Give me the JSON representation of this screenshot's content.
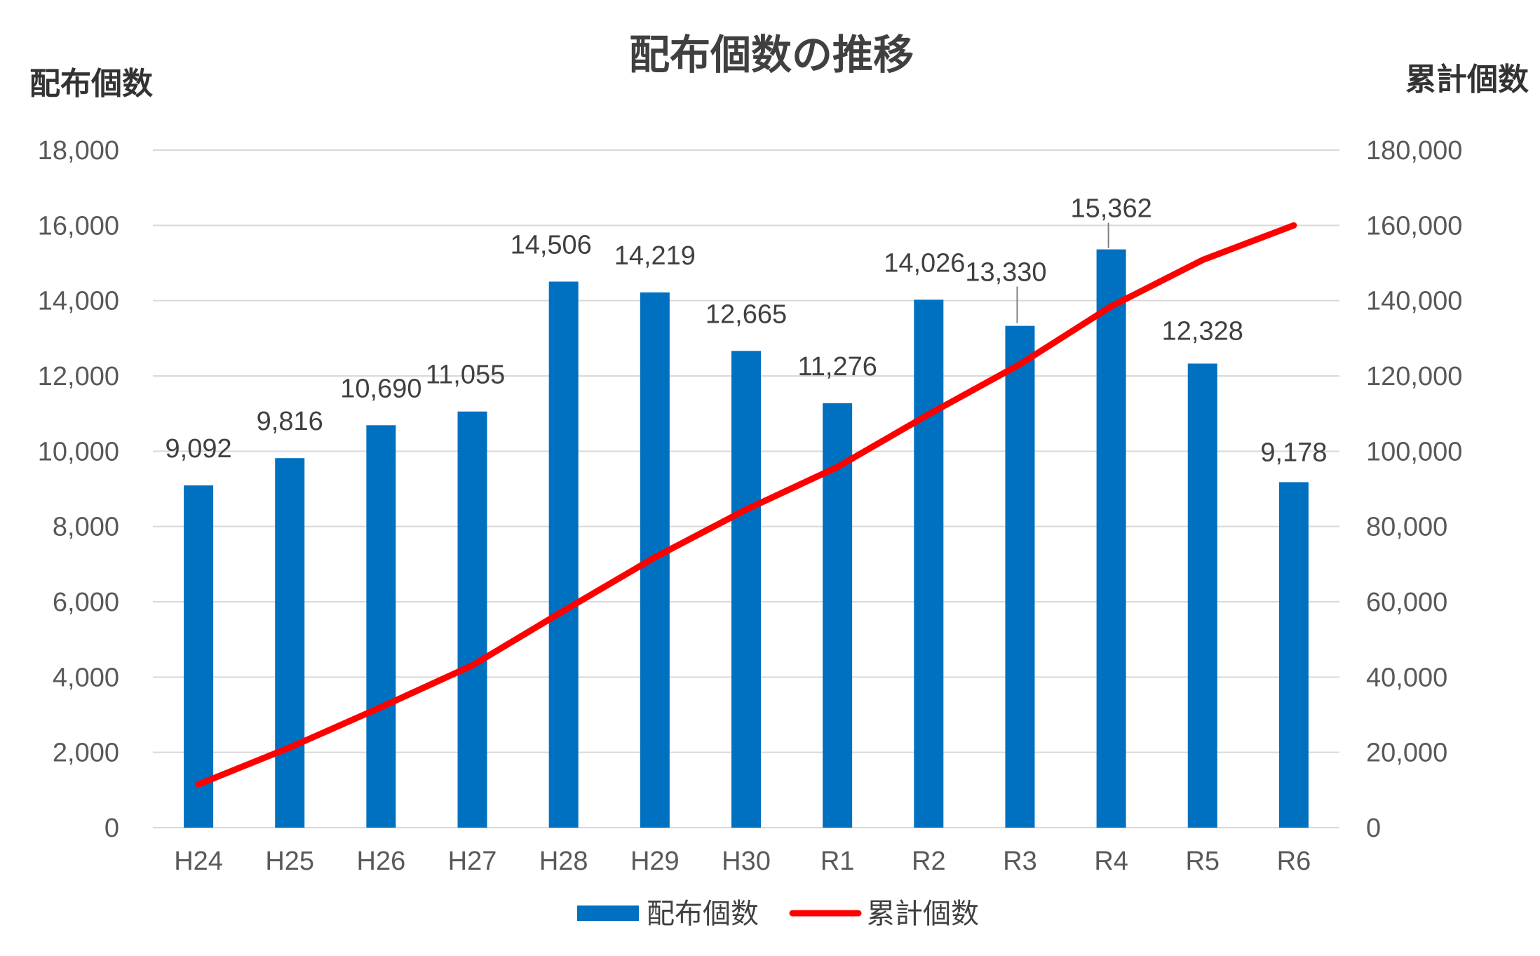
{
  "chart_data": {
    "type": "bar",
    "title": "配布個数の推移",
    "ylabel": "配布個数",
    "y2label": "累計個数",
    "categories": [
      "H24",
      "H25",
      "H26",
      "H27",
      "H28",
      "H29",
      "H30",
      "R1",
      "R2",
      "R3",
      "R4",
      "R5",
      "R6"
    ],
    "ylim": [
      0,
      18000
    ],
    "y2lim": [
      0,
      180000
    ],
    "yticks": [
      "0",
      "2,000",
      "4,000",
      "6,000",
      "8,000",
      "10,000",
      "12,000",
      "14,000",
      "16,000",
      "18,000"
    ],
    "y2ticks": [
      "0",
      "20,000",
      "40,000",
      "60,000",
      "80,000",
      "100,000",
      "120,000",
      "140,000",
      "160,000",
      "180,000"
    ],
    "grid": true,
    "legend_position": "bottom",
    "series": [
      {
        "name": "配布個数",
        "type": "bar",
        "axis": "left",
        "color": "#0070c0",
        "values": [
          9092,
          9816,
          10690,
          11055,
          14506,
          14219,
          12665,
          11276,
          14026,
          13330,
          15362,
          12328,
          9178
        ],
        "data_labels": [
          "9,092",
          "9,816",
          "10,690",
          "11,055",
          "14,506",
          "14,219",
          "12,665",
          "11,276",
          "14,026",
          "13,330",
          "15,362",
          "12,328",
          "9,178"
        ]
      },
      {
        "name": "累計個数",
        "type": "line",
        "axis": "right",
        "color": "#ff0000",
        "values": [
          11500,
          21300,
          32000,
          43100,
          57600,
          71800,
          84500,
          95800,
          109800,
          123100,
          138500,
          150800,
          160000
        ]
      }
    ]
  }
}
